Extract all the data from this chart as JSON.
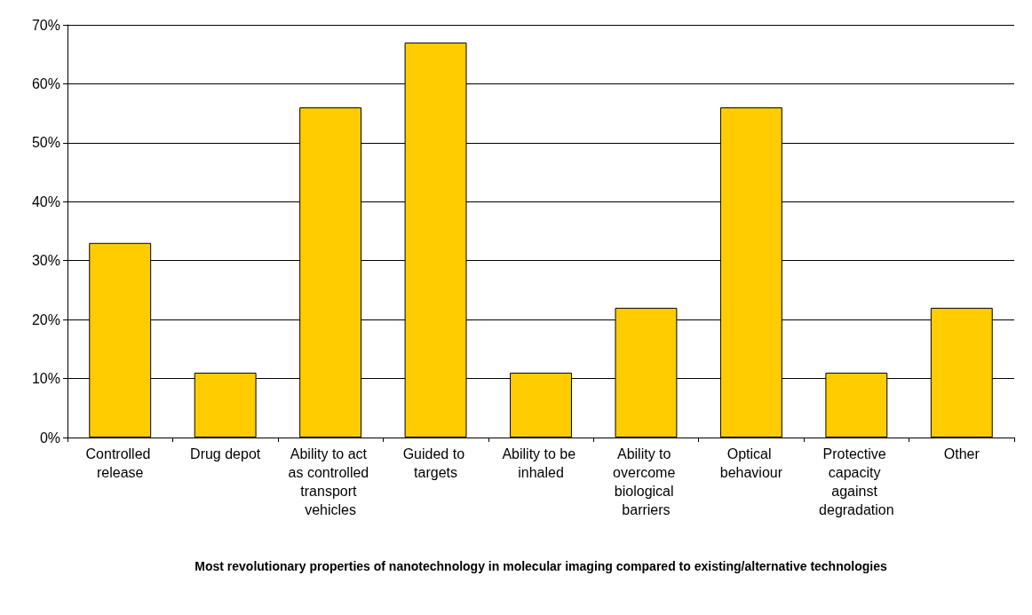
{
  "chart_data": {
    "type": "bar",
    "xlabel": "Most revolutionary properties of nanotechnology in molecular imaging compared to existing/alternative technologies",
    "categories": [
      "Controlled release",
      "Drug depot",
      "Ability to act as controlled transport vehicles",
      "Guided to targets",
      "Ability to be inhaled",
      "Ability to overcome biological barriers",
      "Optical behaviour",
      "Protective capacity against degradation",
      "Other"
    ],
    "values": [
      33,
      11,
      56,
      67,
      11,
      22,
      56,
      11,
      22
    ],
    "color": "#ffcc00",
    "ylim": [
      0,
      70
    ],
    "yticks": [
      {
        "value": 0,
        "label": "0%"
      },
      {
        "value": 10,
        "label": "10%"
      },
      {
        "value": 20,
        "label": "20%"
      },
      {
        "value": 30,
        "label": "30%"
      },
      {
        "value": 40,
        "label": "40%"
      },
      {
        "value": 50,
        "label": "50%"
      },
      {
        "value": 60,
        "label": "60%"
      },
      {
        "value": 70,
        "label": "70%"
      }
    ],
    "grid": "y"
  }
}
